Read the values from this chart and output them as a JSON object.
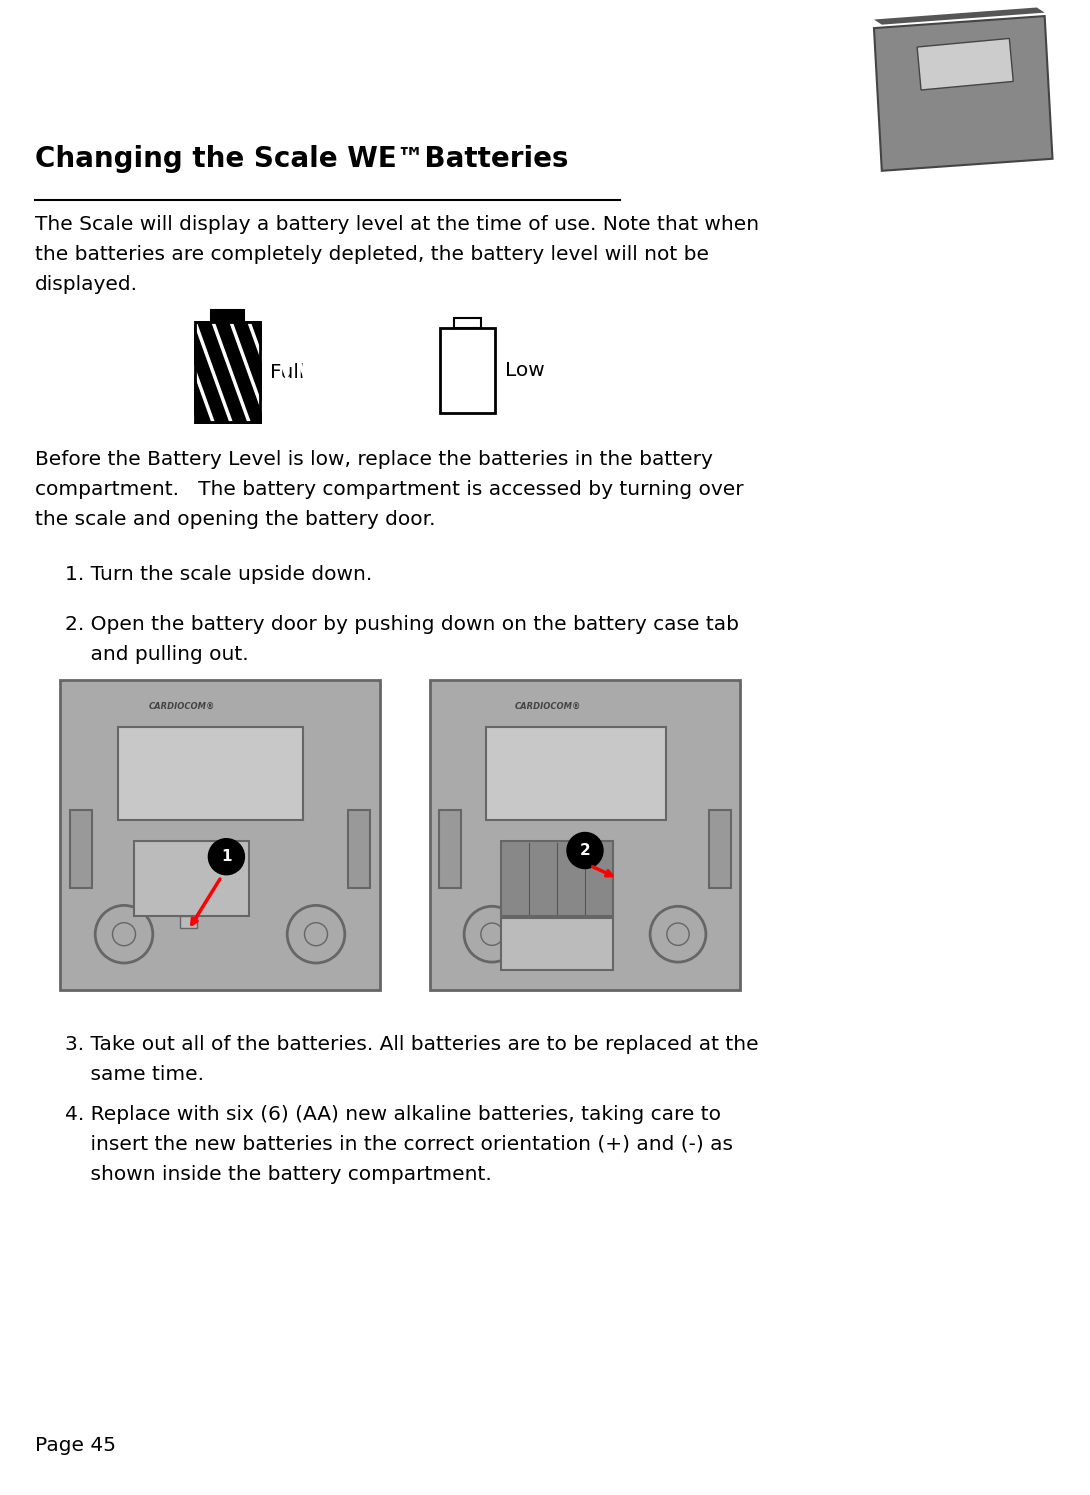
{
  "bg_color": "#ffffff",
  "title": "Changing the Scale WE™Batteries",
  "para1_lines": [
    "The Scale will display a battery level at the time of use. Note that when",
    "the batteries are completely depleted, the battery level will not be",
    "displayed."
  ],
  "label_full": "Full",
  "label_low": "Low",
  "para2_lines": [
    "Before the Battery Level is low, replace the batteries in the battery",
    "compartment.   The battery compartment is accessed by turning over",
    "the scale and opening the battery door."
  ],
  "step1": "1. Turn the scale upside down.",
  "step2_lines": [
    "2. Open the battery door by pushing down on the battery case tab",
    "    and pulling out."
  ],
  "step3_lines": [
    "3. Take out all of the batteries. All batteries are to be replaced at the",
    "    same time."
  ],
  "step4_lines": [
    "4. Replace with six (6) (AA) new alkaline batteries, taking care to",
    "    insert the new batteries in the correct orientation (+) and (-) as",
    "    shown inside the battery compartment."
  ],
  "page_num": "Page 45",
  "text_color": "#000000",
  "title_fontsize": 20,
  "body_fontsize": 14.5,
  "sc_color": "#aaaaaa",
  "sc_edge": "#666666",
  "sc_light": "#c8c8c8",
  "sc_mid": "#bbbbbb"
}
